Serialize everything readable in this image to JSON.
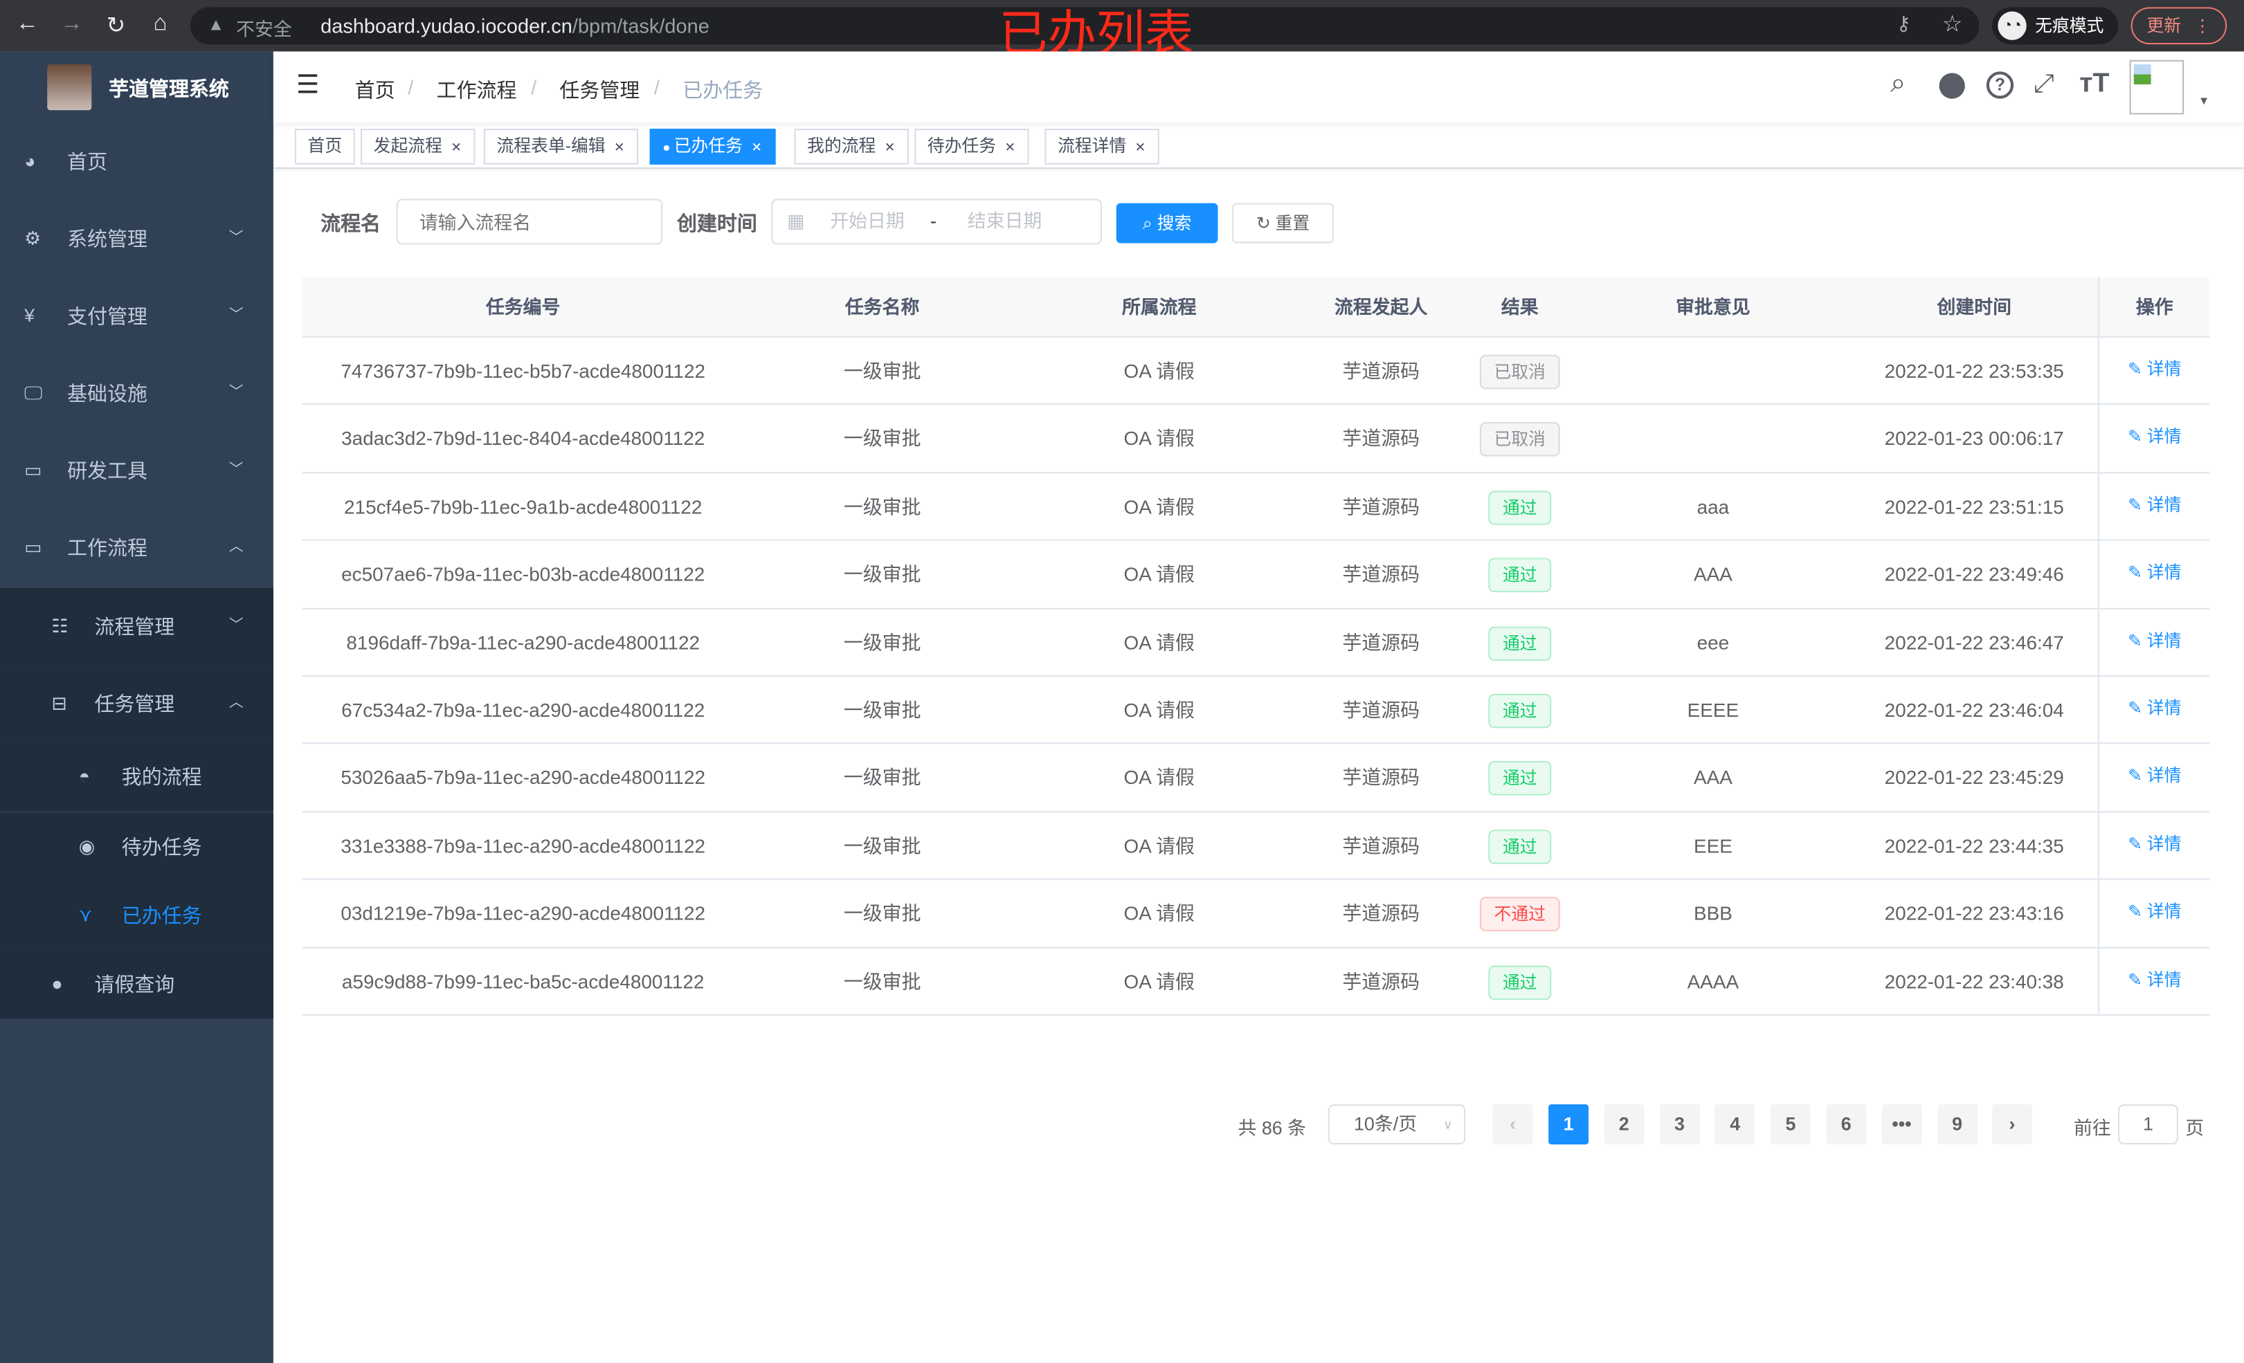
{
  "browser": {
    "url_host": "dashboard.yudao.iocoder.cn",
    "url_path": "/bpm/task/done",
    "insecure": "不安全",
    "incognito": "无痕模式",
    "update": "更新"
  },
  "overlay_title": "已办列表",
  "sidebar": {
    "title": "芋道管理系统",
    "items": [
      {
        "label": "首页",
        "icon": "dashboard-icon"
      },
      {
        "label": "系统管理",
        "icon": "gear-icon",
        "chevron": "down"
      },
      {
        "label": "支付管理",
        "icon": "yen-icon",
        "chevron": "down"
      },
      {
        "label": "基础设施",
        "icon": "monitor-icon",
        "chevron": "down"
      },
      {
        "label": "研发工具",
        "icon": "toolbox-icon",
        "chevron": "down"
      },
      {
        "label": "工作流程",
        "icon": "toolbox-icon",
        "chevron": "up"
      }
    ],
    "sub": [
      {
        "label": "流程管理",
        "icon": "list-icon",
        "chevron": "down"
      },
      {
        "label": "任务管理",
        "icon": "tree-icon",
        "chevron": "up"
      }
    ],
    "subsub": [
      {
        "label": "我的流程",
        "icon": "user-icon"
      },
      {
        "label": "待办任务",
        "icon": "eye-icon"
      },
      {
        "label": "已办任务",
        "icon": "done-icon",
        "active": true
      }
    ],
    "extra": {
      "label": "请假查询",
      "icon": "person-icon"
    }
  },
  "breadcrumb": [
    "首页",
    "工作流程",
    "任务管理",
    "已办任务"
  ],
  "tags": [
    {
      "label": "首页",
      "closable": false
    },
    {
      "label": "发起流程"
    },
    {
      "label": "流程表单-编辑"
    },
    {
      "label": "已办任务",
      "active": true
    },
    {
      "label": "我的流程"
    },
    {
      "label": "待办任务"
    },
    {
      "label": "流程详情"
    }
  ],
  "filter": {
    "name_label": "流程名",
    "name_placeholder": "请输入流程名",
    "time_label": "创建时间",
    "start_placeholder": "开始日期",
    "sep": "-",
    "end_placeholder": "结束日期",
    "search": "搜索",
    "reset": "重置"
  },
  "table": {
    "columns": [
      "任务编号",
      "任务名称",
      "所属流程",
      "流程发起人",
      "结果",
      "审批意见",
      "创建时间",
      "操作"
    ],
    "rows": [
      [
        "74736737-7b9b-11ec-b5b7-acde48001122",
        "一级审批",
        "OA 请假",
        "芋道源码",
        "已取消",
        "",
        "2022-01-22 23:53:35"
      ],
      [
        "3adac3d2-7b9d-11ec-8404-acde48001122",
        "一级审批",
        "OA 请假",
        "芋道源码",
        "已取消",
        "",
        "2022-01-23 00:06:17"
      ],
      [
        "215cf4e5-7b9b-11ec-9a1b-acde48001122",
        "一级审批",
        "OA 请假",
        "芋道源码",
        "通过",
        "aaa",
        "2022-01-22 23:51:15"
      ],
      [
        "ec507ae6-7b9a-11ec-b03b-acde48001122",
        "一级审批",
        "OA 请假",
        "芋道源码",
        "通过",
        "AAA",
        "2022-01-22 23:49:46"
      ],
      [
        "8196daff-7b9a-11ec-a290-acde48001122",
        "一级审批",
        "OA 请假",
        "芋道源码",
        "通过",
        "eee",
        "2022-01-22 23:46:47"
      ],
      [
        "67c534a2-7b9a-11ec-a290-acde48001122",
        "一级审批",
        "OA 请假",
        "芋道源码",
        "通过",
        "EEEE",
        "2022-01-22 23:46:04"
      ],
      [
        "53026aa5-7b9a-11ec-a290-acde48001122",
        "一级审批",
        "OA 请假",
        "芋道源码",
        "通过",
        "AAA",
        "2022-01-22 23:45:29"
      ],
      [
        "331e3388-7b9a-11ec-a290-acde48001122",
        "一级审批",
        "OA 请假",
        "芋道源码",
        "通过",
        "EEE",
        "2022-01-22 23:44:35"
      ],
      [
        "03d1219e-7b9a-11ec-a290-acde48001122",
        "一级审批",
        "OA 请假",
        "芋道源码",
        "不通过",
        "BBB",
        "2022-01-22 23:43:16"
      ],
      [
        "a59c9d88-7b99-11ec-ba5c-acde48001122",
        "一级审批",
        "OA 请假",
        "芋道源码",
        "通过",
        "AAAA",
        "2022-01-22 23:40:38"
      ]
    ],
    "op_label": "详情"
  },
  "status_colors": {
    "已取消": "#909399",
    "通过": "#13ce66",
    "不通过": "#ff4949"
  },
  "pagination": {
    "total": "共 86 条",
    "page_size": "10条/页",
    "pages": [
      "1",
      "2",
      "3",
      "4",
      "5",
      "6",
      "•••",
      "9"
    ],
    "current": "1",
    "goto_label": "前往",
    "goto_value": "1",
    "page_suffix": "页"
  },
  "accent": "#1890ff"
}
